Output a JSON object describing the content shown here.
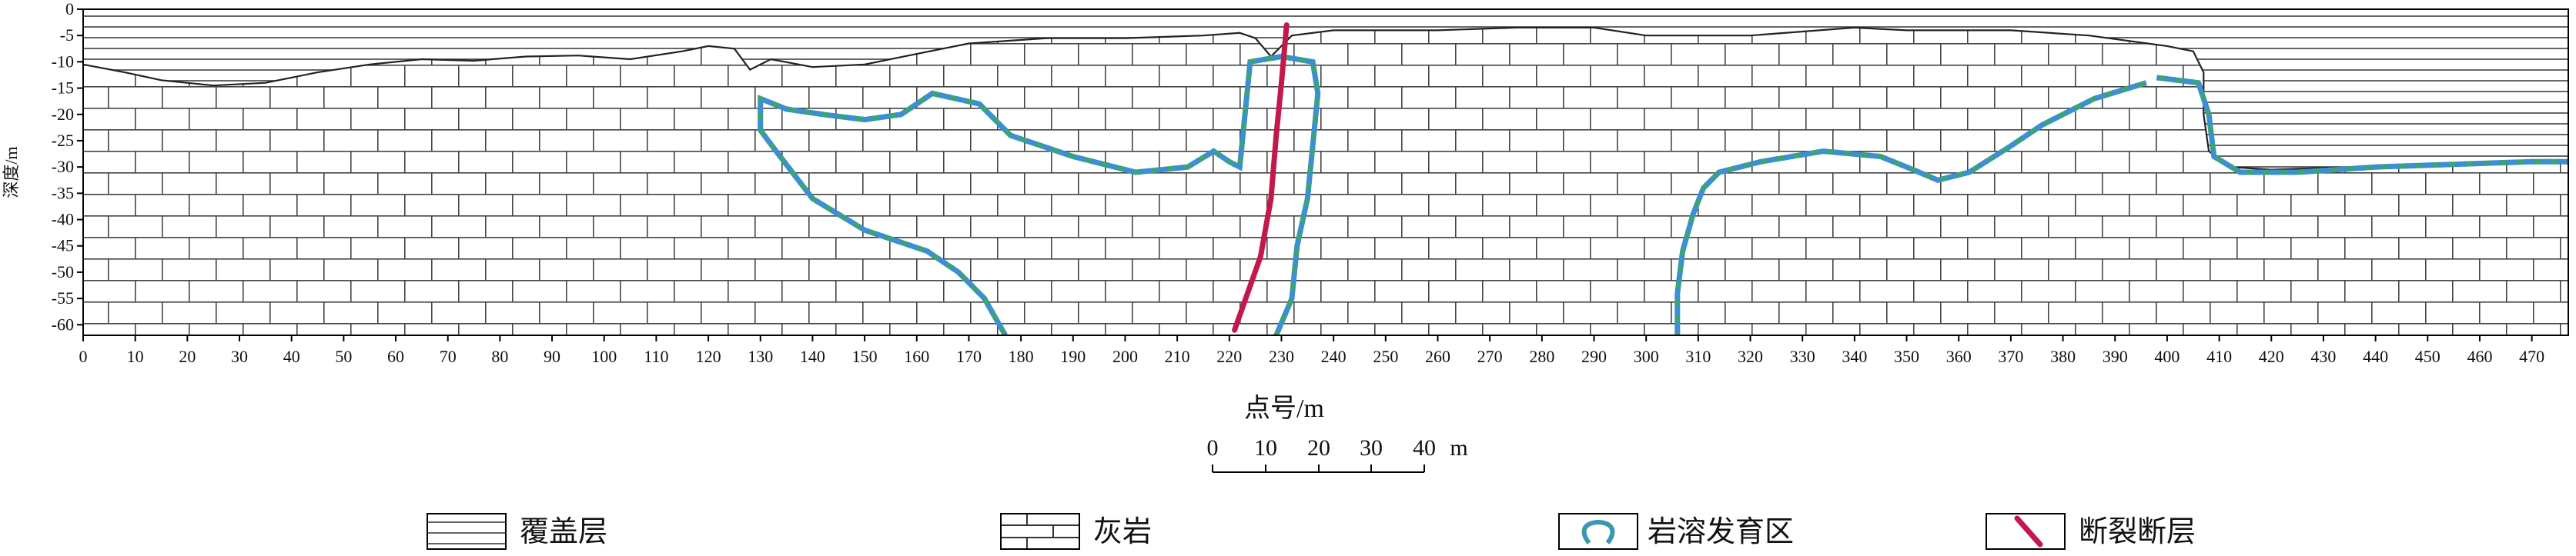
{
  "diagram": {
    "ylabel": "深度/m",
    "xlabel": "点号/m",
    "x_range": [
      0,
      477
    ],
    "y_range": [
      -62,
      0
    ],
    "x_ticks": [
      0,
      10,
      20,
      30,
      40,
      50,
      60,
      70,
      80,
      90,
      100,
      110,
      120,
      130,
      140,
      150,
      160,
      170,
      180,
      190,
      200,
      210,
      220,
      230,
      240,
      250,
      260,
      270,
      280,
      290,
      300,
      310,
      320,
      330,
      340,
      350,
      360,
      370,
      380,
      390,
      400,
      410,
      420,
      430,
      440,
      450,
      460,
      470
    ],
    "y_ticks": [
      0,
      -5,
      -10,
      -15,
      -20,
      -25,
      -30,
      -35,
      -40,
      -45,
      -50,
      -55,
      -60
    ],
    "scale_bar": {
      "labels": [
        "0",
        "10",
        "20",
        "30",
        "40"
      ],
      "unit": "m"
    },
    "legend": [
      {
        "key": "cover",
        "label": "覆盖层"
      },
      {
        "key": "limestone",
        "label": "灰岩"
      },
      {
        "key": "karst",
        "label": "岩溶发育区"
      },
      {
        "key": "fault",
        "label": "断裂断层"
      }
    ],
    "colors": {
      "cover_line": "#333333",
      "limestone_line": "#444444",
      "karst_blue": "#3c8fd0",
      "karst_green": "#3aa37a",
      "fault": "#c2184b",
      "frame": "#000000"
    },
    "surface": [
      [
        0,
        -10.5
      ],
      [
        8,
        -12
      ],
      [
        15,
        -13.5
      ],
      [
        25,
        -14.5
      ],
      [
        35,
        -14
      ],
      [
        45,
        -12
      ],
      [
        55,
        -10.5
      ],
      [
        65,
        -9.5
      ],
      [
        75,
        -9.8
      ],
      [
        85,
        -9
      ],
      [
        95,
        -8.8
      ],
      [
        105,
        -9.5
      ],
      [
        115,
        -8
      ],
      [
        120,
        -7
      ],
      [
        125,
        -7.5
      ],
      [
        128,
        -11.5
      ],
      [
        132,
        -9.5
      ],
      [
        140,
        -11
      ],
      [
        150,
        -10.5
      ],
      [
        160,
        -8.5
      ],
      [
        170,
        -6.5
      ],
      [
        185,
        -5.5
      ],
      [
        200,
        -5.5
      ],
      [
        215,
        -5
      ],
      [
        222,
        -4.5
      ],
      [
        225,
        -5.5
      ],
      [
        228,
        -9
      ],
      [
        232,
        -5
      ],
      [
        240,
        -4
      ],
      [
        260,
        -4
      ],
      [
        275,
        -3.5
      ],
      [
        290,
        -3.5
      ],
      [
        300,
        -5
      ],
      [
        310,
        -5
      ],
      [
        320,
        -5
      ],
      [
        340,
        -3.5
      ],
      [
        350,
        -4
      ],
      [
        370,
        -4
      ],
      [
        385,
        -5
      ],
      [
        400,
        -7
      ],
      [
        405,
        -8
      ],
      [
        407,
        -12
      ],
      [
        407,
        -20
      ],
      [
        408,
        -27
      ],
      [
        412,
        -30
      ],
      [
        420,
        -30.5
      ],
      [
        435,
        -30
      ],
      [
        450,
        -29.5
      ],
      [
        465,
        -29.5
      ],
      [
        477,
        -29
      ]
    ],
    "karst_zones": [
      [
        [
          177,
          -62
        ],
        [
          173,
          -55
        ],
        [
          168,
          -50
        ],
        [
          162,
          -46
        ],
        [
          150,
          -42
        ],
        [
          140,
          -36
        ],
        [
          133,
          -27
        ],
        [
          130,
          -23
        ],
        [
          130,
          -17
        ],
        [
          135,
          -19
        ],
        [
          142,
          -20
        ],
        [
          150,
          -21
        ],
        [
          157,
          -20
        ],
        [
          163,
          -16
        ],
        [
          172,
          -18
        ],
        [
          178,
          -24
        ],
        [
          190,
          -28
        ],
        [
          202,
          -31
        ],
        [
          212,
          -30
        ],
        [
          217,
          -27
        ],
        [
          220,
          -29
        ],
        [
          222,
          -30
        ],
        [
          223,
          -20
        ],
        [
          224,
          -10
        ],
        [
          230,
          -9
        ],
        [
          236,
          -10
        ],
        [
          237,
          -16
        ],
        [
          236,
          -26
        ],
        [
          235,
          -36
        ],
        [
          233,
          -45
        ],
        [
          232,
          -55
        ],
        [
          229,
          -62
        ]
      ],
      [
        [
          396,
          -14
        ],
        [
          386,
          -17
        ],
        [
          376,
          -22
        ],
        [
          370,
          -26
        ],
        [
          362,
          -31
        ],
        [
          356,
          -32.5
        ],
        [
          350,
          -30
        ],
        [
          345,
          -28
        ],
        [
          334,
          -27
        ],
        [
          322,
          -29
        ],
        [
          314,
          -31
        ],
        [
          311,
          -34
        ],
        [
          309,
          -39
        ],
        [
          307,
          -46
        ],
        [
          306,
          -54
        ],
        [
          306,
          -62
        ]
      ],
      [
        [
          398,
          -13
        ],
        [
          406,
          -14
        ],
        [
          408,
          -20
        ],
        [
          409,
          -28
        ],
        [
          414,
          -31
        ],
        [
          425,
          -31
        ],
        [
          440,
          -30
        ],
        [
          455,
          -29.5
        ],
        [
          470,
          -29
        ],
        [
          477,
          -29
        ]
      ]
    ],
    "fault": [
      [
        221,
        -61
      ],
      [
        226,
        -47
      ],
      [
        228,
        -36
      ],
      [
        229,
        -24
      ],
      [
        230,
        -14
      ],
      [
        231,
        -3
      ]
    ]
  }
}
